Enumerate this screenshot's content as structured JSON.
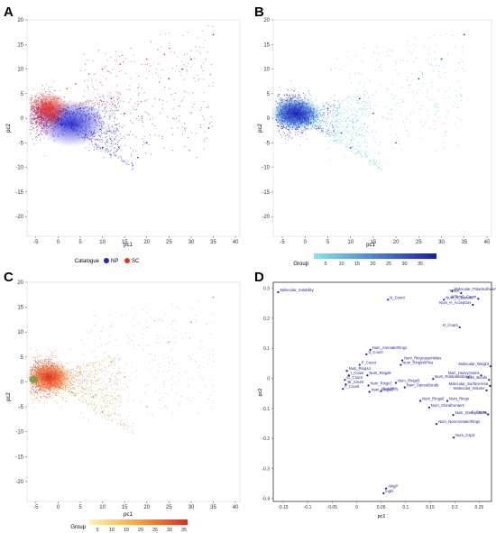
{
  "panels": [
    {
      "letter": "A",
      "chart_data": {
        "type": "scatter",
        "xlabel": "pc1",
        "ylabel": "pc2",
        "xlim": [
          -7,
          41
        ],
        "ylim": [
          -24,
          20
        ],
        "x_ticks": [
          "-5",
          "0",
          "5",
          "10",
          "15",
          "20",
          "25",
          "30",
          "35",
          "40"
        ],
        "y_ticks": [
          "-20",
          "-15",
          "-10",
          "-5",
          "0",
          "5",
          "10",
          "15",
          "20"
        ],
        "legend": {
          "title": "Catalogue",
          "placement": "bottom",
          "entries": [
            {
              "label": "NP",
              "color": "#2222cc"
            },
            {
              "label": "SC",
              "color": "#e8312a"
            }
          ]
        },
        "series": [
          {
            "name": "NP",
            "color": "#2222cc",
            "points": [
              [
                -5,
                1
              ],
              [
                0,
                0
              ],
              [
                3,
                -2
              ],
              [
                5,
                2
              ],
              [
                8,
                -3
              ],
              [
                10,
                -6
              ],
              [
                12,
                4
              ],
              [
                15,
                1
              ],
              [
                18,
                -8
              ],
              [
                20,
                -5
              ],
              [
                25,
                8
              ],
              [
                28,
                10
              ],
              [
                30,
                12
              ],
              [
                34,
                -2
              ],
              [
                35,
                17
              ]
            ]
          },
          {
            "name": "SC",
            "color": "#e8312a",
            "points": [
              [
                -5,
                1
              ],
              [
                -3,
                2
              ],
              [
                -1,
                0
              ],
              [
                0,
                4
              ],
              [
                2,
                6
              ],
              [
                4,
                7
              ],
              [
                7,
                9
              ],
              [
                10,
                10
              ],
              [
                14,
                11
              ],
              [
                20,
                12
              ],
              [
                24,
                13
              ]
            ]
          }
        ]
      }
    },
    {
      "letter": "B",
      "chart_data": {
        "type": "scatter",
        "xlabel": "pc1",
        "ylabel": "pc2",
        "xlim": [
          -7,
          41
        ],
        "ylim": [
          -24,
          20
        ],
        "x_ticks": [
          "-5",
          "0",
          "5",
          "10",
          "15",
          "20",
          "25",
          "30",
          "35",
          "40"
        ],
        "y_ticks": [
          "-20",
          "-15",
          "-10",
          "-5",
          "0",
          "5",
          "10",
          "15",
          "20"
        ],
        "legend": {
          "title": "Group",
          "placement": "bottom",
          "gradient": [
            "#7ee8f0",
            "#1a1ab8"
          ],
          "ticks": [
            "5",
            "10",
            "15",
            "20",
            "25",
            "30",
            "35"
          ]
        },
        "points": [
          [
            -5,
            1
          ],
          [
            0,
            0
          ],
          [
            3,
            -2
          ],
          [
            5,
            2
          ],
          [
            8,
            -3
          ],
          [
            10,
            -6
          ],
          [
            12,
            4
          ],
          [
            15,
            1
          ],
          [
            20,
            -5
          ],
          [
            25,
            8
          ],
          [
            30,
            12
          ],
          [
            35,
            17
          ]
        ]
      }
    },
    {
      "letter": "C",
      "chart_data": {
        "type": "scatter",
        "xlabel": "pc1",
        "ylabel": "pc2",
        "xlim": [
          -7,
          41
        ],
        "ylim": [
          -24,
          20
        ],
        "x_ticks": [
          "-5",
          "0",
          "5",
          "10",
          "15",
          "20",
          "25",
          "30",
          "35",
          "40"
        ],
        "y_ticks": [
          "-20",
          "-15",
          "-10",
          "-5",
          "0",
          "5",
          "10",
          "15",
          "20"
        ],
        "legend": {
          "title": "Group",
          "placement": "bottom",
          "gradient": [
            "#fff3b0",
            "#f9a43a",
            "#e02a1c"
          ],
          "ticks": [
            "5",
            "10",
            "15",
            "20",
            "25",
            "30",
            "35"
          ]
        },
        "points": [
          [
            -5,
            1
          ],
          [
            0,
            0
          ],
          [
            3,
            -2
          ],
          [
            5,
            2
          ],
          [
            8,
            -3
          ],
          [
            10,
            -6
          ],
          [
            12,
            4
          ],
          [
            15,
            1
          ],
          [
            20,
            -5
          ],
          [
            25,
            8
          ],
          [
            30,
            12
          ],
          [
            35,
            17
          ]
        ]
      }
    },
    {
      "letter": "D",
      "chart_data": {
        "type": "scatter",
        "xlabel": "pc1",
        "ylabel": "pc2",
        "xlim": [
          -0.17,
          0.275
        ],
        "ylim": [
          -0.41,
          0.32
        ],
        "x_ticks": [
          "-0.15",
          "-0.1",
          "-0.05",
          "0",
          "0.05",
          "0.1",
          "0.15",
          "0.2",
          "0.25"
        ],
        "y_ticks": [
          "-0.4",
          "-0.3",
          "-0.2",
          "-0.1",
          "0",
          "0.1",
          "0.2",
          "0.3"
        ],
        "color": "#1a1aa0",
        "points": [
          {
            "label": "Molecular_Solubility",
            "x": -0.16,
            "y": 0.287
          },
          {
            "label": "Molecular_PolarSurfaceArea",
            "x": 0.195,
            "y": 0.29
          },
          {
            "label": "TPSA",
            "x": 0.213,
            "y": 0.284
          },
          {
            "label": "N_Count",
            "x": 0.064,
            "y": 0.262
          },
          {
            "label": "NPlusO_Count",
            "x": 0.248,
            "y": 0.265
          },
          {
            "label": "Num_H_Donors",
            "x": 0.178,
            "y": 0.262
          },
          {
            "label": "Num_H_Acceptors",
            "x": 0.237,
            "y": 0.245
          },
          {
            "label": "O_Count",
            "x": 0.21,
            "y": 0.17
          },
          {
            "label": "Num_AromaticRings",
            "x": 0.028,
            "y": 0.095
          },
          {
            "label": "S_Count",
            "x": 0.02,
            "y": 0.08
          },
          {
            "label": "Num_RingAssemblies",
            "x": 0.093,
            "y": 0.06
          },
          {
            "label": "Num_RingsWPlus",
            "x": 0.09,
            "y": 0.045
          },
          {
            "label": "P_Count",
            "x": 0.006,
            "y": 0.045
          },
          {
            "label": "Num_Rings4",
            "x": -0.02,
            "y": 0.025
          },
          {
            "label": "Num_Rings8",
            "x": 0.022,
            "y": 0.01
          },
          {
            "label": "I_Count",
            "x": -0.016,
            "y": 0.01
          },
          {
            "label": "Cl_Count",
            "x": -0.024,
            "y": -0.005
          },
          {
            "label": "Br_Count",
            "x": -0.022,
            "y": -0.02
          },
          {
            "label": "F_Count",
            "x": -0.028,
            "y": -0.035
          },
          {
            "label": "Num_Rings7",
            "x": 0.024,
            "y": -0.024
          },
          {
            "label": "Num_Rings3",
            "x": 0.026,
            "y": -0.045
          },
          {
            "label": "Num_RotatableBonds",
            "x": 0.156,
            "y": -0.002
          },
          {
            "label": "Num_Rings5",
            "x": 0.08,
            "y": -0.015
          },
          {
            "label": "Num_StereoBonds",
            "x": 0.098,
            "y": -0.03
          },
          {
            "label": "Solubility",
            "x": 0.05,
            "y": -0.042
          },
          {
            "label": "Molecular_Weight",
            "x": 0.273,
            "y": 0.04
          },
          {
            "label": "Num_HeavyAtoms",
            "x": 0.254,
            "y": 0.01
          },
          {
            "label": "Num_Bonds",
            "x": 0.27,
            "y": -0.005
          },
          {
            "label": "Molecular_SurfaceArea",
            "x": 0.272,
            "y": -0.025
          },
          {
            "label": "Molecular_Volume",
            "x": 0.265,
            "y": -0.04
          },
          {
            "label": "Num_Rings6",
            "x": 0.13,
            "y": -0.075
          },
          {
            "label": "Num_Rings",
            "x": 0.185,
            "y": -0.075
          },
          {
            "label": "Num_ChiralCenters",
            "x": 0.148,
            "y": -0.097
          },
          {
            "label": "Num_StereoAtoms",
            "x": 0.197,
            "y": -0.122
          },
          {
            "label": "C_Count",
            "x": 0.268,
            "y": -0.12
          },
          {
            "label": "Num_NonAromaticRings",
            "x": 0.163,
            "y": -0.152
          },
          {
            "label": "Num_Csp3",
            "x": 0.198,
            "y": -0.197
          },
          {
            "label": "AlogP",
            "x": 0.06,
            "y": -0.367
          },
          {
            "label": "logD",
            "x": 0.055,
            "y": -0.383
          }
        ]
      }
    }
  ]
}
